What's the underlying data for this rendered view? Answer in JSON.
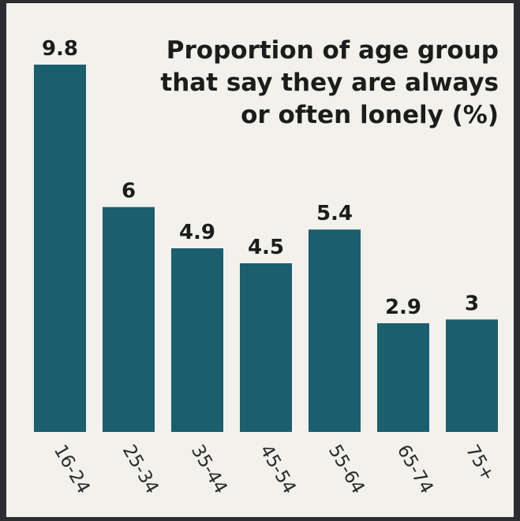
{
  "chart_data": {
    "type": "bar",
    "title_lines": [
      "Proportion of age group",
      "that say they are always",
      "or often lonely (%)"
    ],
    "categories": [
      "16-24",
      "25-34",
      "35-44",
      "45-54",
      "55-64",
      "65-74",
      "75+"
    ],
    "values": [
      9.8,
      6,
      4.9,
      4.5,
      5.4,
      2.9,
      3
    ],
    "value_labels": [
      "9.8",
      "6",
      "4.9",
      "4.5",
      "5.4",
      "2.9",
      "3"
    ],
    "ylim": [
      0,
      9.8
    ],
    "bar_color": "#1b5e6e",
    "grid": false,
    "legend": "none"
  }
}
